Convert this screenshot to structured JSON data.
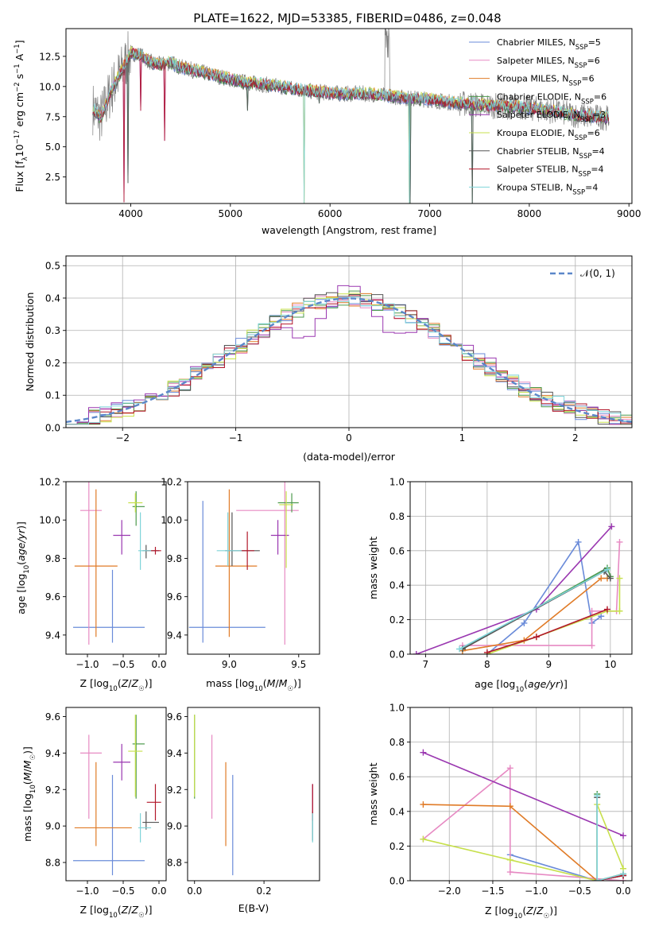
{
  "figure_title": "PLATE=1622, MJD=53385, FIBERID=0486, z=0.048",
  "series_colors": [
    "#6a8bd9",
    "#e78ac3",
    "#e07b27",
    "#4d9a4d",
    "#9a37b0",
    "#c7e04c",
    "#555555",
    "#b2182b",
    "#7fd4d9"
  ],
  "chart_data": [
    {
      "id": "spectrum",
      "type": "line",
      "title": "PLATE=1622, MJD=53385, FIBERID=0486, z=0.048",
      "xlabel": "wavelength [Angstrom, rest frame]",
      "ylabel": "Flux [f_λ 10^-17 erg cm^-2 s^-1 A^-1]",
      "xlim": [
        3350,
        9030
      ],
      "ylim": [
        0.3,
        14.8
      ],
      "xticks": [
        "4000",
        "5000",
        "6000",
        "7000",
        "8000",
        "9000"
      ],
      "yticks": [
        "2.5",
        "5.0",
        "7.5",
        "10.0",
        "12.5"
      ],
      "grid": false,
      "legend_position": "top-right",
      "legend": [
        {
          "name": "Chabrier MILES, N",
          "sub": "SSP",
          "suffix": "=5"
        },
        {
          "name": "Salpeter MILES, N",
          "sub": "SSP",
          "suffix": "=6"
        },
        {
          "name": "Kroupa MILES, N",
          "sub": "SSP",
          "suffix": "=6"
        },
        {
          "name": "Chabrier ELODIE, N",
          "sub": "SSP",
          "suffix": "=6"
        },
        {
          "name": "Salpeter ELODIE, N",
          "sub": "SSP",
          "suffix": "=3"
        },
        {
          "name": "Kroupa ELODIE, N",
          "sub": "SSP",
          "suffix": "=6"
        },
        {
          "name": "Chabrier STELIB, N",
          "sub": "SSP",
          "suffix": "=4"
        },
        {
          "name": "Salpeter STELIB, N",
          "sub": "SSP",
          "suffix": "=4"
        },
        {
          "name": "Kroupa STELIB, N",
          "sub": "SSP",
          "suffix": "=4"
        }
      ],
      "continuum": [
        [
          3620,
          8.2
        ],
        [
          3700,
          7.4
        ],
        [
          3800,
          9.6
        ],
        [
          3900,
          11.2
        ],
        [
          4000,
          12.8
        ],
        [
          4100,
          12.6
        ],
        [
          4200,
          12.0
        ],
        [
          4300,
          11.8
        ],
        [
          4400,
          12.0
        ],
        [
          4500,
          11.6
        ],
        [
          4700,
          11.2
        ],
        [
          4900,
          10.8
        ],
        [
          5100,
          10.4
        ],
        [
          5300,
          10.2
        ],
        [
          5500,
          10.0
        ],
        [
          5800,
          9.6
        ],
        [
          6100,
          9.4
        ],
        [
          6400,
          9.4
        ],
        [
          6700,
          9.1
        ],
        [
          7000,
          8.9
        ],
        [
          7300,
          8.6
        ],
        [
          7600,
          8.4
        ],
        [
          7900,
          8.3
        ],
        [
          8200,
          8.0
        ],
        [
          8500,
          7.6
        ],
        [
          8800,
          7.4
        ]
      ],
      "absorption_lines": [
        [
          3934,
          0.4
        ],
        [
          3969,
          2.0
        ],
        [
          4102,
          8.0
        ],
        [
          4340,
          5.5
        ],
        [
          5175,
          8.0
        ],
        [
          5740,
          0.3
        ],
        [
          5890,
          8.6
        ],
        [
          6800,
          0.3
        ],
        [
          7430,
          0.3
        ]
      ]
    },
    {
      "id": "residuals",
      "type": "step",
      "xlabel": "(data-model)/error",
      "ylabel": "Normed distribution",
      "xlim": [
        -2.5,
        2.5
      ],
      "ylim": [
        0,
        0.53
      ],
      "xticks": [
        "−2",
        "−1",
        "0",
        "1",
        "2"
      ],
      "yticks": [
        "0.0",
        "0.1",
        "0.2",
        "0.3",
        "0.4",
        "0.5"
      ],
      "grid": true,
      "bin_width": 0.1,
      "legend_position": "top-right",
      "reference_label": "𝒩(0, 1)"
    },
    {
      "id": "age-vs-Z",
      "type": "errorbar",
      "xlabel": "Z [log10(Z/Z☉)]",
      "ylabel": "age  [log10(age/yr)]",
      "xlim": [
        -1.3,
        0.1
      ],
      "ylim": [
        9.3,
        10.2
      ],
      "xticks": [
        "−1.0",
        "−0.5",
        "0.0"
      ],
      "yticks": [
        "9.4",
        "9.6",
        "9.8",
        "10.0",
        "10.2"
      ],
      "points": [
        {
          "x": -0.65,
          "y": 9.44,
          "xerr": [
            0.55,
            0.45
          ],
          "yerr": [
            0.08,
            0.3
          ]
        },
        {
          "x": -0.98,
          "y": 10.05,
          "xerr": [
            0.12,
            0.18
          ],
          "yerr": [
            0.7,
            0.15
          ]
        },
        {
          "x": -0.88,
          "y": 9.76,
          "xerr": [
            0.3,
            0.3
          ],
          "yerr": [
            0.37,
            0.4
          ]
        },
        {
          "x": -0.32,
          "y": 10.07,
          "xerr": [
            0.05,
            0.12
          ],
          "yerr": [
            0.1,
            0.08
          ]
        },
        {
          "x": -0.52,
          "y": 9.92,
          "xerr": [
            0.12,
            0.12
          ],
          "yerr": [
            0.1,
            0.08
          ]
        },
        {
          "x": -0.33,
          "y": 10.09,
          "xerr": [
            0.1,
            0.1
          ],
          "yerr": [
            0.05,
            0.05
          ]
        },
        {
          "x": -0.18,
          "y": 9.84,
          "xerr": [
            0.05,
            0.18
          ],
          "yerr": [
            0.04,
            0.03
          ]
        },
        {
          "x": -0.05,
          "y": 9.84,
          "xerr": [
            0.12,
            0.08
          ],
          "yerr": [
            0.02,
            0.02
          ]
        },
        {
          "x": -0.26,
          "y": 9.84,
          "xerr": [
            0.03,
            0.15
          ],
          "yerr": [
            0.1,
            0.2
          ]
        }
      ]
    },
    {
      "id": "age-vs-mass",
      "type": "errorbar",
      "xlabel": "mass [log10(M/M☉)]",
      "ylabel": "",
      "xlim": [
        8.7,
        9.65
      ],
      "ylim": [
        9.3,
        10.2
      ],
      "xticks": [
        "9.0",
        "9.5"
      ],
      "yticks": [
        "9.4",
        "9.6",
        "9.8",
        "10.0",
        "10.2"
      ],
      "points": [
        {
          "x": 8.81,
          "y": 9.44,
          "xerr": [
            0.1,
            0.45
          ],
          "yerr": [
            0.08,
            0.66
          ]
        },
        {
          "x": 9.4,
          "y": 10.05,
          "xerr": [
            0.35,
            0.1
          ],
          "yerr": [
            0.7,
            0.15
          ]
        },
        {
          "x": 9.0,
          "y": 9.76,
          "xerr": [
            0.1,
            0.2
          ],
          "yerr": [
            0.37,
            0.4
          ]
        },
        {
          "x": 9.45,
          "y": 10.09,
          "xerr": [
            0.1,
            0.05
          ],
          "yerr": [
            0.05,
            0.05
          ]
        },
        {
          "x": 9.35,
          "y": 9.92,
          "xerr": [
            0.05,
            0.08
          ],
          "yerr": [
            0.1,
            0.08
          ]
        },
        {
          "x": 9.41,
          "y": 10.08,
          "xerr": [
            0.05,
            0.05
          ],
          "yerr": [
            0.33,
            0.07
          ]
        },
        {
          "x": 9.02,
          "y": 9.84,
          "xerr": [
            0.05,
            0.2
          ],
          "yerr": [
            0.08,
            0.2
          ]
        },
        {
          "x": 9.13,
          "y": 9.84,
          "xerr": [
            0.05,
            0.05
          ],
          "yerr": [
            0.1,
            0.1
          ]
        },
        {
          "x": 8.99,
          "y": 9.84,
          "xerr": [
            0.08,
            0.1
          ],
          "yerr": [
            0.08,
            0.2
          ]
        }
      ]
    },
    {
      "id": "mass-weight-vs-age",
      "type": "line",
      "xlabel": "age  [log10(age/yr)]",
      "ylabel": "mass weight",
      "xlim": [
        6.75,
        10.35
      ],
      "ylim": [
        0,
        1.0
      ],
      "xticks": [
        "7",
        "8",
        "9",
        "10"
      ],
      "yticks": [
        "0.0",
        "0.2",
        "0.4",
        "0.6",
        "0.8",
        "1.0"
      ],
      "grid": true,
      "series": [
        {
          "x": [
            8.0,
            8.6,
            9.48,
            9.7,
            9.85
          ],
          "y": [
            0.0,
            0.18,
            0.65,
            0.18,
            0.22
          ]
        },
        {
          "x": [
            7.6,
            9.7,
            9.7,
            10.1,
            10.15
          ],
          "y": [
            0.05,
            0.05,
            0.25,
            0.25,
            0.65
          ]
        },
        {
          "x": [
            7.6,
            8.6,
            9.85,
            9.95
          ],
          "y": [
            0.02,
            0.08,
            0.44,
            0.44
          ]
        },
        {
          "x": [
            7.6,
            9.95,
            10.0
          ],
          "y": [
            0.03,
            0.5,
            0.45
          ]
        },
        {
          "x": [
            6.85,
            8.8,
            10.02
          ],
          "y": [
            0.0,
            0.26,
            0.74
          ]
        },
        {
          "x": [
            8.0,
            8.8,
            9.95,
            10.15,
            10.15
          ],
          "y": [
            0.0,
            0.1,
            0.25,
            0.25,
            0.44
          ]
        },
        {
          "x": [
            7.6,
            9.9,
            10.0
          ],
          "y": [
            0.03,
            0.48,
            0.44
          ]
        },
        {
          "x": [
            8.0,
            8.8,
            9.95
          ],
          "y": [
            0.01,
            0.1,
            0.26
          ]
        },
        {
          "x": [
            7.55,
            9.95
          ],
          "y": [
            0.03,
            0.49
          ]
        }
      ]
    },
    {
      "id": "mass-vs-Z",
      "type": "errorbar",
      "xlabel": "Z [log10(Z/Z☉)]",
      "ylabel": "mass [log10(M/M☉)]",
      "xlim": [
        -1.3,
        0.1
      ],
      "ylim": [
        8.7,
        9.65
      ],
      "xticks": [
        "−1.0",
        "−0.5",
        "0.0"
      ],
      "yticks": [
        "8.8",
        "9.0",
        "9.2",
        "9.4",
        "9.6"
      ],
      "points": [
        {
          "x": -0.65,
          "y": 8.81,
          "xerr": [
            0.55,
            0.45
          ],
          "yerr": [
            0.08,
            0.47
          ]
        },
        {
          "x": -0.98,
          "y": 9.4,
          "xerr": [
            0.12,
            0.18
          ],
          "yerr": [
            0.36,
            0.1
          ]
        },
        {
          "x": -0.88,
          "y": 8.99,
          "xerr": [
            0.3,
            0.5
          ],
          "yerr": [
            0.1,
            0.36
          ]
        },
        {
          "x": -0.32,
          "y": 9.45,
          "xerr": [
            0.05,
            0.12
          ],
          "yerr": [
            0.3,
            0.16
          ]
        },
        {
          "x": -0.52,
          "y": 9.35,
          "xerr": [
            0.12,
            0.12
          ],
          "yerr": [
            0.1,
            0.1
          ]
        },
        {
          "x": -0.33,
          "y": 9.41,
          "xerr": [
            0.1,
            0.1
          ],
          "yerr": [
            0.25,
            0.2
          ]
        },
        {
          "x": -0.18,
          "y": 9.02,
          "xerr": [
            0.05,
            0.18
          ],
          "yerr": [
            0.04,
            0.06
          ]
        },
        {
          "x": -0.05,
          "y": 9.13,
          "xerr": [
            0.12,
            0.08
          ],
          "yerr": [
            0.1,
            0.1
          ]
        },
        {
          "x": -0.26,
          "y": 8.99,
          "xerr": [
            0.03,
            0.15
          ],
          "yerr": [
            0.08,
            0.08
          ]
        }
      ]
    },
    {
      "id": "mass-vs-ebv",
      "type": "errorbar",
      "xlabel": "E(B-V)",
      "ylabel": "",
      "xlim": [
        -0.02,
        0.36
      ],
      "ylim": [
        8.7,
        9.65
      ],
      "xticks": [
        "0.0",
        "0.2"
      ],
      "yticks": [
        "8.8",
        "9.0",
        "9.2",
        "9.4",
        "9.6"
      ],
      "points": [
        {
          "x": 0.11,
          "y": 8.81,
          "xerr": [
            0,
            0
          ],
          "yerr": [
            0.08,
            0.47
          ]
        },
        {
          "x": 0.05,
          "y": 9.4,
          "xerr": [
            0,
            0
          ],
          "yerr": [
            0.36,
            0.1
          ]
        },
        {
          "x": 0.09,
          "y": 8.99,
          "xerr": [
            0,
            0
          ],
          "yerr": [
            0.1,
            0.36
          ]
        },
        {
          "x": 0.0,
          "y": 9.45,
          "xerr": [
            0,
            0
          ],
          "yerr": [
            0.3,
            0.16
          ]
        },
        {
          "x": 0.34,
          "y": 9.13,
          "xerr": [
            0,
            0
          ],
          "yerr": [
            0.1,
            0.1
          ]
        },
        {
          "x": 0.0,
          "y": 9.41,
          "xerr": [
            0,
            0
          ],
          "yerr": [
            0.25,
            0.2
          ]
        },
        {
          "x": 0.34,
          "y": 9.02,
          "xerr": [
            0,
            0
          ],
          "yerr": [
            0.1,
            0.06
          ]
        },
        {
          "x": 0.34,
          "y": 9.13,
          "xerr": [
            0,
            0
          ],
          "yerr": [
            0.1,
            0.1
          ]
        },
        {
          "x": 0.34,
          "y": 8.99,
          "xerr": [
            0,
            0
          ],
          "yerr": [
            0.08,
            0.08
          ]
        }
      ]
    },
    {
      "id": "mass-weight-vs-Z",
      "type": "line",
      "xlabel": "Z [log10(Z/Z☉)]",
      "ylabel": "mass weight",
      "xlim": [
        -2.45,
        0.1
      ],
      "ylim": [
        0,
        1.0
      ],
      "xticks": [
        "−2.0",
        "−1.5",
        "−1.0",
        "−0.5",
        "0.0"
      ],
      "yticks": [
        "0.0",
        "0.2",
        "0.4",
        "0.6",
        "0.8",
        "1.0"
      ],
      "grid": true,
      "series": [
        {
          "x": [
            -1.3,
            -0.3,
            0.0
          ],
          "y": [
            0.15,
            0.0,
            0.03
          ]
        },
        {
          "x": [
            -2.3,
            -1.3,
            -1.3,
            0.0
          ],
          "y": [
            0.24,
            0.65,
            0.05,
            0.0
          ]
        },
        {
          "x": [
            -2.3,
            -1.3,
            -0.3,
            0.0
          ],
          "y": [
            0.44,
            0.43,
            0.0,
            0.04
          ]
        },
        {
          "x": [
            -0.3,
            -0.3,
            0.0
          ],
          "y": [
            0.5,
            0.0,
            0.03
          ]
        },
        {
          "x": [
            -2.3,
            0.0
          ],
          "y": [
            0.74,
            0.26
          ]
        },
        {
          "x": [
            -2.3,
            -1.3,
            -0.3,
            -0.3,
            0.0
          ],
          "y": [
            0.24,
            0.12,
            0.0,
            0.44,
            0.07
          ]
        },
        {
          "x": [
            -0.3,
            -0.3,
            0.0
          ],
          "y": [
            0.48,
            0.0,
            0.03
          ]
        },
        {
          "x": [
            -0.3,
            0.0
          ],
          "y": [
            0.0,
            0.03
          ]
        },
        {
          "x": [
            -0.3,
            -0.3,
            0.0
          ],
          "y": [
            0.49,
            0.0,
            0.04
          ]
        }
      ]
    }
  ]
}
